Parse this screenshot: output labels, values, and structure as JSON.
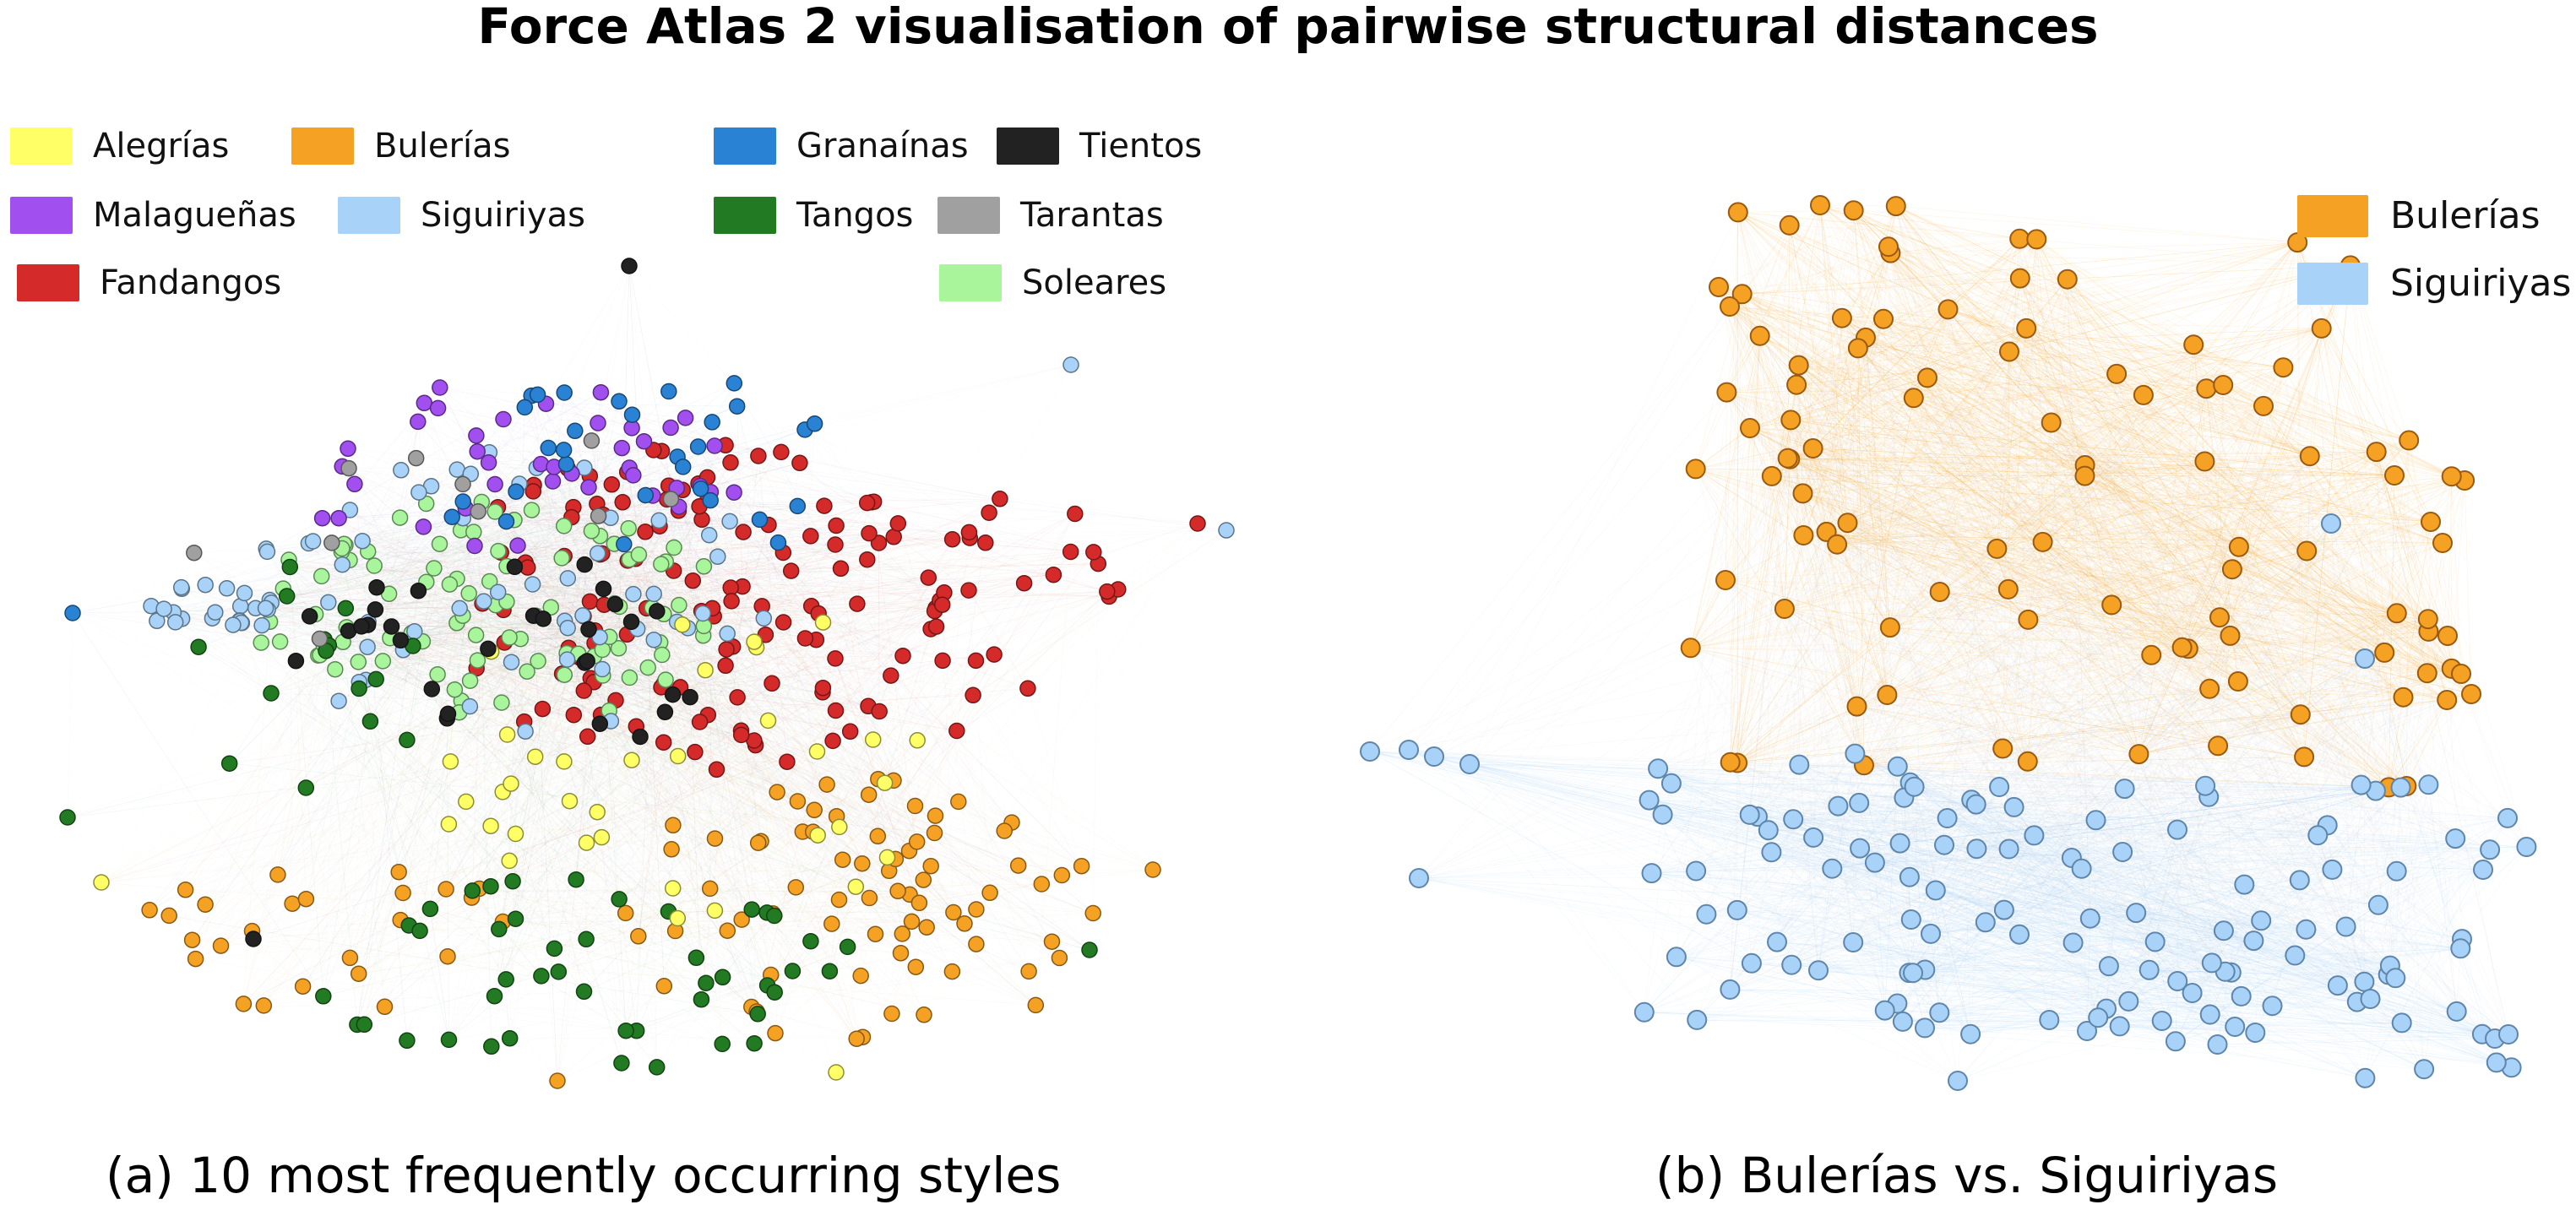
{
  "title": "Force Atlas 2 visualisation of pairwise structural distances",
  "panel_a": {
    "caption": "(a) 10 most frequently occurring styles",
    "legend": [
      {
        "label": "Alegrías",
        "color": "#ffff66"
      },
      {
        "label": "Bulerías",
        "color": "#f5a124"
      },
      {
        "label": "Granaínas",
        "color": "#2a82d4"
      },
      {
        "label": "Tientos",
        "color": "#222222"
      },
      {
        "label": "Malagueñas",
        "color": "#a24ff0"
      },
      {
        "label": "Siguiriyas",
        "color": "#a8d2f7"
      },
      {
        "label": "Tangos",
        "color": "#227a22"
      },
      {
        "label": "Tarantas",
        "color": "#a0a0a0"
      },
      {
        "label": "Fandangos",
        "color": "#d42a2a"
      },
      {
        "label": "Soleares",
        "color": "#a8f59c"
      }
    ]
  },
  "panel_b": {
    "caption": "(b) Bulerías vs. Siguiriyas",
    "legend": [
      {
        "label": "Bulerías",
        "color": "#f5a124"
      },
      {
        "label": "Siguiriyas",
        "color": "#a8d2f7"
      }
    ]
  }
}
